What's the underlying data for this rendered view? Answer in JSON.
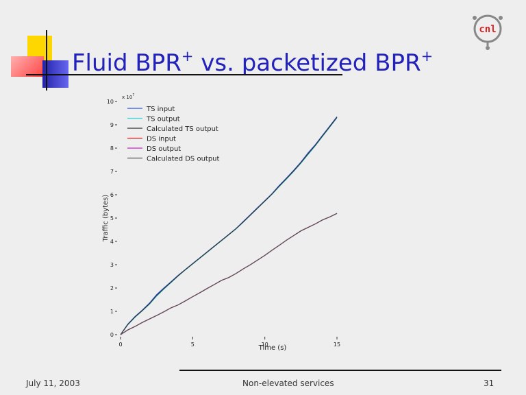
{
  "slide": {
    "title_part1": "Fluid BPR",
    "title_sup1": "+",
    "title_part2": " vs. packetized BPR",
    "title_sup2": "+",
    "logo_text": "cnl",
    "footer_date": "July 11, 2003",
    "footer_center": "Non-elevated services",
    "footer_page": "31"
  },
  "chart_data": {
    "type": "line",
    "xlabel": "Time (s)",
    "ylabel": "Traffic (bytes)",
    "y_multiplier_label": "x 10",
    "y_multiplier_exp": "7",
    "xlim": [
      0,
      15
    ],
    "ylim": [
      0,
      10
    ],
    "x_ticks": [
      0,
      5,
      10,
      15
    ],
    "y_ticks": [
      0,
      1,
      2,
      3,
      4,
      5,
      6,
      7,
      8,
      9,
      10
    ],
    "legend_position": "top-left",
    "grid": false,
    "series": [
      {
        "name": "TS input",
        "color": "#3355dd",
        "x": [
          0,
          0.5,
          1,
          1.5,
          2,
          2.5,
          3,
          3.5,
          4,
          4.5,
          5,
          5.5,
          6,
          6.5,
          7,
          7.5,
          8,
          8.5,
          9,
          9.5,
          10,
          10.5,
          11,
          11.5,
          12,
          12.5,
          13,
          13.5,
          14,
          14.5,
          15
        ],
        "y": [
          0,
          0.45,
          0.78,
          1.05,
          1.35,
          1.72,
          2.0,
          2.27,
          2.55,
          2.8,
          3.05,
          3.3,
          3.55,
          3.8,
          4.05,
          4.3,
          4.55,
          4.85,
          5.15,
          5.45,
          5.75,
          6.05,
          6.4,
          6.72,
          7.05,
          7.4,
          7.8,
          8.15,
          8.55,
          8.95,
          9.35
        ]
      },
      {
        "name": "TS output",
        "color": "#33dddd",
        "x": [
          0,
          0.5,
          1,
          1.5,
          2,
          2.5,
          3,
          3.5,
          4,
          4.5,
          5,
          5.5,
          6,
          6.5,
          7,
          7.5,
          8,
          8.5,
          9,
          9.5,
          10,
          10.5,
          11,
          11.5,
          12,
          12.5,
          13,
          13.5,
          14,
          14.5,
          15
        ],
        "y": [
          0,
          0.42,
          0.74,
          1.02,
          1.3,
          1.65,
          1.95,
          2.23,
          2.52,
          2.78,
          3.03,
          3.28,
          3.53,
          3.78,
          4.03,
          4.28,
          4.53,
          4.82,
          5.12,
          5.42,
          5.72,
          6.02,
          6.35,
          6.67,
          7.0,
          7.35,
          7.73,
          8.1,
          8.5,
          8.9,
          9.3
        ]
      },
      {
        "name": "Calculated TS output",
        "color": "#333333",
        "x": [
          0,
          0.5,
          1,
          1.5,
          2,
          2.5,
          3,
          3.5,
          4,
          4.5,
          5,
          5.5,
          6,
          6.5,
          7,
          7.5,
          8,
          8.5,
          9,
          9.5,
          10,
          10.5,
          11,
          11.5,
          12,
          12.5,
          13,
          13.5,
          14,
          14.5,
          15
        ],
        "y": [
          0,
          0.43,
          0.76,
          1.03,
          1.32,
          1.68,
          1.97,
          2.25,
          2.53,
          2.79,
          3.04,
          3.29,
          3.54,
          3.79,
          4.04,
          4.29,
          4.54,
          4.83,
          5.13,
          5.43,
          5.73,
          6.03,
          6.37,
          6.69,
          7.02,
          7.37,
          7.76,
          8.12,
          8.52,
          8.92,
          9.32
        ]
      },
      {
        "name": "DS input",
        "color": "#dd2222",
        "x": [
          0,
          0.5,
          1,
          1.5,
          2,
          2.5,
          3,
          3.5,
          4,
          4.5,
          5,
          5.5,
          6,
          6.5,
          7,
          7.5,
          8,
          8.5,
          9,
          9.5,
          10,
          10.5,
          11,
          11.5,
          12,
          12.5,
          13,
          13.5,
          14,
          14.5,
          15
        ],
        "y": [
          0,
          0.2,
          0.35,
          0.52,
          0.67,
          0.82,
          0.98,
          1.15,
          1.28,
          1.45,
          1.63,
          1.8,
          1.98,
          2.15,
          2.33,
          2.45,
          2.62,
          2.82,
          3.0,
          3.2,
          3.4,
          3.62,
          3.83,
          4.05,
          4.25,
          4.45,
          4.6,
          4.75,
          4.92,
          5.05,
          5.2
        ]
      },
      {
        "name": "DS output",
        "color": "#cc22cc",
        "x": [
          0,
          0.5,
          1,
          1.5,
          2,
          2.5,
          3,
          3.5,
          4,
          4.5,
          5,
          5.5,
          6,
          6.5,
          7,
          7.5,
          8,
          8.5,
          9,
          9.5,
          10,
          10.5,
          11,
          11.5,
          12,
          12.5,
          13,
          13.5,
          14,
          14.5,
          15
        ],
        "y": [
          0,
          0.2,
          0.35,
          0.52,
          0.67,
          0.82,
          0.98,
          1.15,
          1.28,
          1.45,
          1.63,
          1.8,
          1.98,
          2.15,
          2.33,
          2.45,
          2.62,
          2.82,
          3.0,
          3.2,
          3.4,
          3.62,
          3.83,
          4.05,
          4.25,
          4.45,
          4.6,
          4.75,
          4.92,
          5.05,
          5.2
        ]
      },
      {
        "name": "Calculated DS output",
        "color": "#555555",
        "x": [
          0,
          0.5,
          1,
          1.5,
          2,
          2.5,
          3,
          3.5,
          4,
          4.5,
          5,
          5.5,
          6,
          6.5,
          7,
          7.5,
          8,
          8.5,
          9,
          9.5,
          10,
          10.5,
          11,
          11.5,
          12,
          12.5,
          13,
          13.5,
          14,
          14.5,
          15
        ],
        "y": [
          0,
          0.2,
          0.35,
          0.52,
          0.67,
          0.82,
          0.98,
          1.15,
          1.28,
          1.45,
          1.63,
          1.8,
          1.98,
          2.15,
          2.33,
          2.45,
          2.62,
          2.82,
          3.0,
          3.2,
          3.4,
          3.62,
          3.83,
          4.05,
          4.25,
          4.45,
          4.6,
          4.75,
          4.92,
          5.05,
          5.2
        ]
      }
    ]
  }
}
